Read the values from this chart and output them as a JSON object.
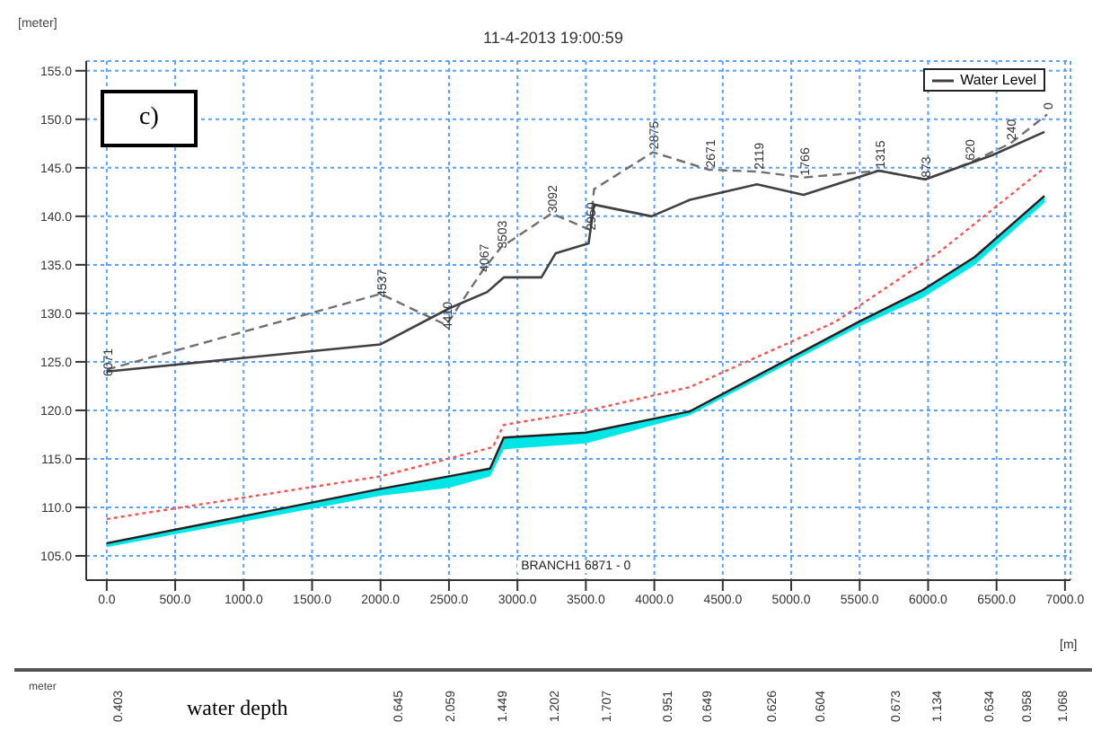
{
  "chart_data": {
    "type": "line",
    "title": "11-4-2013 19:00:59",
    "ylabel": "[meter]",
    "xlabel": "[m]",
    "xlim": [
      -150,
      7040
    ],
    "ylim": [
      102.5,
      156
    ],
    "xticks": [
      {
        "value": 0,
        "label": "0.0"
      },
      {
        "value": 500,
        "label": "500.0"
      },
      {
        "value": 1000,
        "label": "1000.0"
      },
      {
        "value": 1500,
        "label": "1500.0"
      },
      {
        "value": 2000,
        "label": "2000.0"
      },
      {
        "value": 2500,
        "label": "2500.0"
      },
      {
        "value": 3000,
        "label": "3000.0"
      },
      {
        "value": 3500,
        "label": "3500.0"
      },
      {
        "value": 4000,
        "label": "4000.0"
      },
      {
        "value": 4500,
        "label": "4500.0"
      },
      {
        "value": 5000,
        "label": "5000.0"
      },
      {
        "value": 5500,
        "label": "5500.0"
      },
      {
        "value": 6000,
        "label": "6000.0"
      },
      {
        "value": 6500,
        "label": "6500.0"
      },
      {
        "value": 7000,
        "label": "7000.0"
      }
    ],
    "yticks": [
      {
        "value": 105,
        "label": "105.0"
      },
      {
        "value": 110,
        "label": "110.0"
      },
      {
        "value": 115,
        "label": "115.0"
      },
      {
        "value": 120,
        "label": "120.0"
      },
      {
        "value": 125,
        "label": "125.0"
      },
      {
        "value": 130,
        "label": "130.0"
      },
      {
        "value": 135,
        "label": "135.0"
      },
      {
        "value": 140,
        "label": "140.0"
      },
      {
        "value": 145,
        "label": "145.0"
      },
      {
        "value": 150,
        "label": "150.0"
      },
      {
        "value": 155,
        "label": "155.0"
      }
    ],
    "grid": true,
    "legend": "top right",
    "marker": "none",
    "series": [
      {
        "color": "#202020",
        "x": [
          0,
          2000,
          2500,
          2800,
          2900,
          3500,
          4260,
          5490,
          5960,
          6340,
          6850
        ],
        "values": [
          106.3,
          111.9,
          113.2,
          114.0,
          117.2,
          117.7,
          119.9,
          129.1,
          132.4,
          135.8,
          142.1
        ],
        "lower": [
          105.9,
          111.2,
          112.0,
          113.2,
          116.0,
          116.6,
          119.5,
          128.6,
          131.6,
          135.0,
          141.4
        ],
        "upper": [
          106.3,
          111.9,
          113.2,
          114.0,
          117.2,
          117.7,
          119.9,
          129.1,
          132.4,
          135.8,
          142.1
        ]
      },
      {
        "color": "#ff5050",
        "line_style": "dotted",
        "x": [
          0,
          2000,
          2820,
          2900,
          3490,
          4260,
          5320,
          6080,
          6850
        ],
        "values": [
          108.8,
          113.2,
          116.2,
          118.5,
          119.9,
          122.4,
          129.1,
          136.3,
          145.0
        ]
      },
      {
        "color": "#707070",
        "line_style": "dashed",
        "x": [
          0,
          2000,
          2480,
          2750,
          2880,
          3250,
          3530,
          3560,
          3990,
          4400,
          4760,
          5090,
          5640,
          5980,
          6300,
          6600,
          6870
        ],
        "values": [
          124.2,
          132.0,
          128.8,
          134.5,
          136.8,
          140.3,
          138.6,
          142.8,
          146.6,
          144.8,
          144.6,
          144.0,
          144.7,
          143.8,
          145.5,
          147.5,
          150.5
        ]
      },
      {
        "name": "Water Level",
        "color": "#404040",
        "x": [
          0,
          2000,
          2500,
          2780,
          2900,
          3175,
          3280,
          3520,
          3560,
          3980,
          4260,
          4750,
          5090,
          5640,
          5980,
          6470,
          6850
        ],
        "values": [
          124.0,
          126.8,
          130.5,
          132.2,
          133.7,
          133.7,
          136.2,
          137.2,
          141.2,
          140.0,
          141.7,
          143.3,
          142.2,
          144.7,
          143.8,
          146.3,
          148.7
        ]
      }
    ],
    "annotations": [
      "c)",
      "BRANCH1 6871 - 0",
      "meter",
      "water depth",
      "0.403",
      "0.645",
      "2.059",
      "1.449",
      "1.202",
      "1.707",
      "0.951",
      "0.649",
      "0.626",
      "0.604",
      "0.673",
      "1.134",
      "0.634",
      "0.958",
      "1.068",
      {
        "text": "6071",
        "x": 0,
        "y": 124.2
      },
      {
        "text": "4537",
        "x": 2000,
        "y": 132.0
      },
      {
        "text": "4410",
        "x": 2480,
        "y": 128.8
      },
      {
        "text": "4067",
        "x": 2750,
        "y": 134.5
      },
      {
        "text": "3503",
        "x": 2880,
        "y": 136.8
      },
      {
        "text": "3092",
        "x": 3250,
        "y": 140.3
      },
      {
        "text": "2950",
        "x": 3530,
        "y": 138.6
      },
      {
        "text": "2875",
        "x": 3990,
        "y": 146.6
      },
      {
        "text": "2671",
        "x": 4400,
        "y": 144.8
      },
      {
        "text": "2119",
        "x": 4760,
        "y": 144.6
      },
      {
        "text": "1766",
        "x": 5090,
        "y": 144.0
      },
      {
        "text": "1315",
        "x": 5640,
        "y": 144.7
      },
      {
        "text": "873",
        "x": 5980,
        "y": 143.8
      },
      {
        "text": "620",
        "x": 6300,
        "y": 145.5
      },
      {
        "text": "240",
        "x": 6600,
        "y": 147.5
      },
      {
        "text": "0",
        "x": 6870,
        "y": 150.5
      }
    ]
  }
}
